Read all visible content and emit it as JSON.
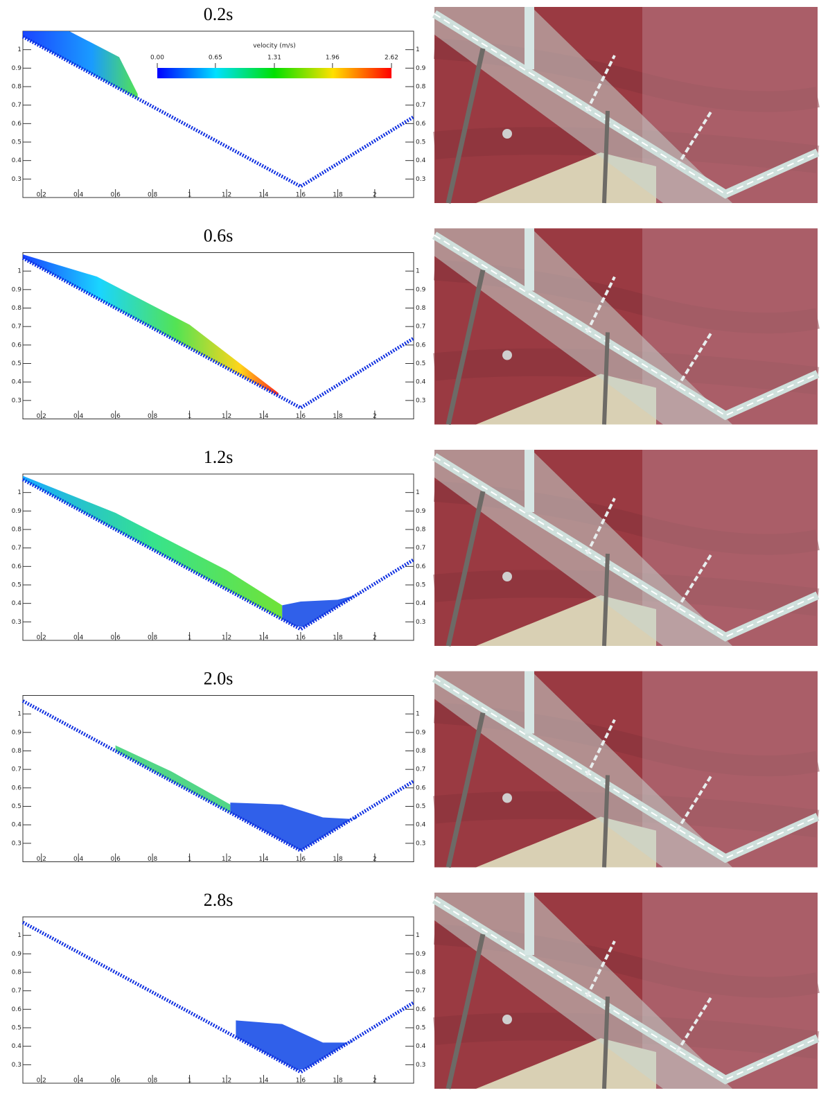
{
  "panels": [
    {
      "title": "0.2s",
      "xlim": [
        0.1,
        2.21
      ],
      "ylim": [
        0.2,
        1.1
      ],
      "xticks": [
        0.2,
        0.4,
        0.6,
        0.8,
        1,
        1.2,
        1.4,
        1.6,
        1.8,
        2
      ],
      "yticks": [
        0.3,
        0.4,
        0.5,
        0.6,
        0.7,
        0.8,
        0.9,
        1
      ]
    },
    {
      "title": "0.6s",
      "xlim": [
        0.1,
        2.21
      ],
      "ylim": [
        0.2,
        1.1
      ],
      "xticks": [
        0.2,
        0.4,
        0.6,
        0.8,
        1,
        1.2,
        1.4,
        1.6,
        1.8,
        2
      ],
      "yticks": [
        0.3,
        0.4,
        0.5,
        0.6,
        0.7,
        0.8,
        0.9,
        1
      ]
    },
    {
      "title": "1.2s",
      "xlim": [
        0.1,
        2.21
      ],
      "ylim": [
        0.2,
        1.1
      ],
      "xticks": [
        0.2,
        0.4,
        0.6,
        0.8,
        1,
        1.2,
        1.4,
        1.6,
        1.8,
        2
      ],
      "yticks": [
        0.3,
        0.4,
        0.5,
        0.6,
        0.7,
        0.8,
        0.9,
        1
      ]
    },
    {
      "title": "2.0s",
      "xlim": [
        0.1,
        2.21
      ],
      "ylim": [
        0.2,
        1.1
      ],
      "xticks": [
        0.2,
        0.4,
        0.6,
        0.8,
        1,
        1.2,
        1.4,
        1.6,
        1.8,
        2
      ],
      "yticks": [
        0.3,
        0.4,
        0.5,
        0.6,
        0.7,
        0.8,
        0.9,
        1
      ]
    },
    {
      "title": "2.8s",
      "xlim": [
        0.1,
        2.21
      ],
      "ylim": [
        0.2,
        1.1
      ],
      "xticks": [
        0.2,
        0.4,
        0.6,
        0.8,
        1,
        1.2,
        1.4,
        1.6,
        1.8,
        2
      ],
      "yticks": [
        0.3,
        0.4,
        0.5,
        0.6,
        0.7,
        0.8,
        0.9,
        1
      ]
    }
  ],
  "colorbar": {
    "label": "velocity (m/s)",
    "ticks": [
      {
        "value": 0,
        "label": "0.00"
      },
      0.65,
      1.31,
      1.96,
      2.62
    ]
  }
}
